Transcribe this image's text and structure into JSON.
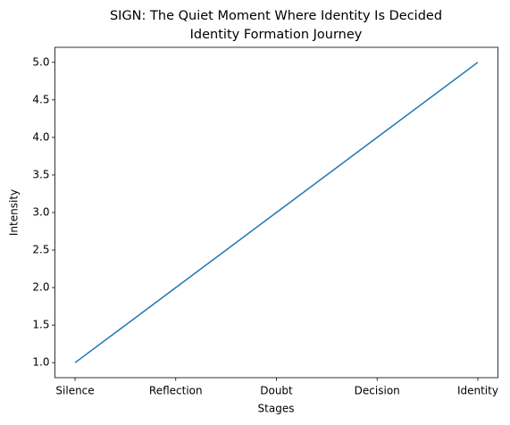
{
  "chart_data": {
    "type": "line",
    "title": "SIGN: The Quiet Moment Where Identity Is Decided",
    "subtitle": "Identity Formation Journey",
    "x_label": "Stages",
    "y_label": "Intensity",
    "categories": [
      "Silence",
      "Reflection",
      "Doubt",
      "Decision",
      "Identity"
    ],
    "values": [
      1,
      2,
      3,
      4,
      5
    ],
    "color": "#1f77b4",
    "ylim": [
      0.8,
      5.2
    ],
    "yticks": [
      {
        "value": 1,
        "label": "1.0"
      },
      1.5,
      {
        "value": 2,
        "label": "2.0"
      },
      2.5,
      {
        "value": 3,
        "label": "3.0"
      },
      3.5,
      {
        "value": 4,
        "label": "4.0"
      },
      4.5,
      {
        "value": 5,
        "label": "5.0"
      }
    ],
    "grid": false
  }
}
